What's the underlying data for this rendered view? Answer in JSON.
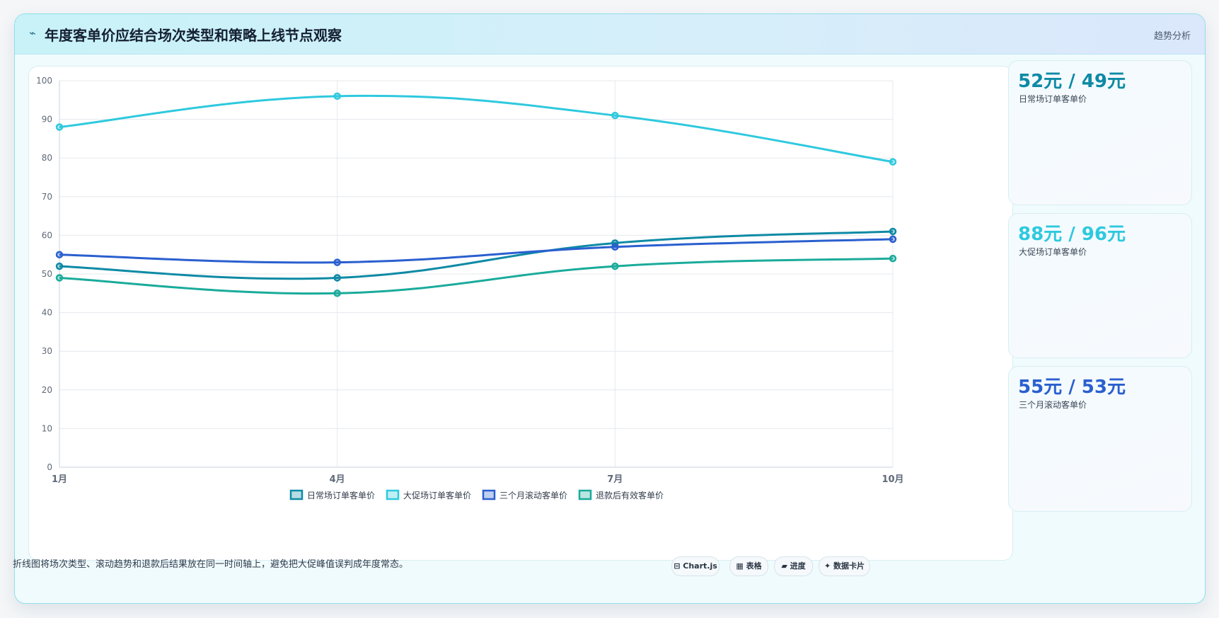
{
  "header": {
    "icon": "trend-icon",
    "title": "年度客单价应结合场次类型和策略上线节点观察",
    "action_label": "趋势分析"
  },
  "chart_data": {
    "type": "line",
    "categories": [
      "1月",
      "4月",
      "7月",
      "10月"
    ],
    "ylim": [
      0,
      100
    ],
    "yticks": [
      0,
      10,
      20,
      30,
      40,
      50,
      60,
      70,
      80,
      90,
      100
    ],
    "grid": true,
    "legend_position": "bottom",
    "series": [
      {
        "name": "日常场订单客单价",
        "color": "#0e8aa5",
        "values": [
          52,
          49,
          58,
          61
        ]
      },
      {
        "name": "大促场订单客单价",
        "color": "#2ec9de",
        "values": [
          88,
          96,
          91,
          79
        ]
      },
      {
        "name": "三个月滚动客单价",
        "color": "#2a5fcf",
        "values": [
          55,
          53,
          57,
          59
        ]
      },
      {
        "name": "退款后有效客单价",
        "color": "#1aab9b",
        "values": [
          49,
          45,
          52,
          54
        ]
      }
    ]
  },
  "kpis": [
    {
      "value": "52元 / 49元",
      "label": "日常场订单客单价",
      "color": "#0e8aa5"
    },
    {
      "value": "88元 / 96元",
      "label": "大促场订单客单价",
      "color": "#2ec9de"
    },
    {
      "value": "55元 / 53元",
      "label": "三个月滚动客单价",
      "color": "#2a5fcf"
    }
  ],
  "footer": {
    "note": "折线图将场次类型、滚动趋势和退款后结果放在同一时间轴上，避免把大促峰值误判成年度常态。",
    "chips": [
      {
        "icon": "chart-icon",
        "glyph": "⊟",
        "label": "Chart.js"
      },
      {
        "icon": "table-icon",
        "glyph": "▦",
        "label": "表格"
      },
      {
        "icon": "progress-icon",
        "glyph": "▰",
        "label": "进度"
      },
      {
        "icon": "data-card-icon",
        "glyph": "✦",
        "label": "数据卡片"
      }
    ]
  }
}
